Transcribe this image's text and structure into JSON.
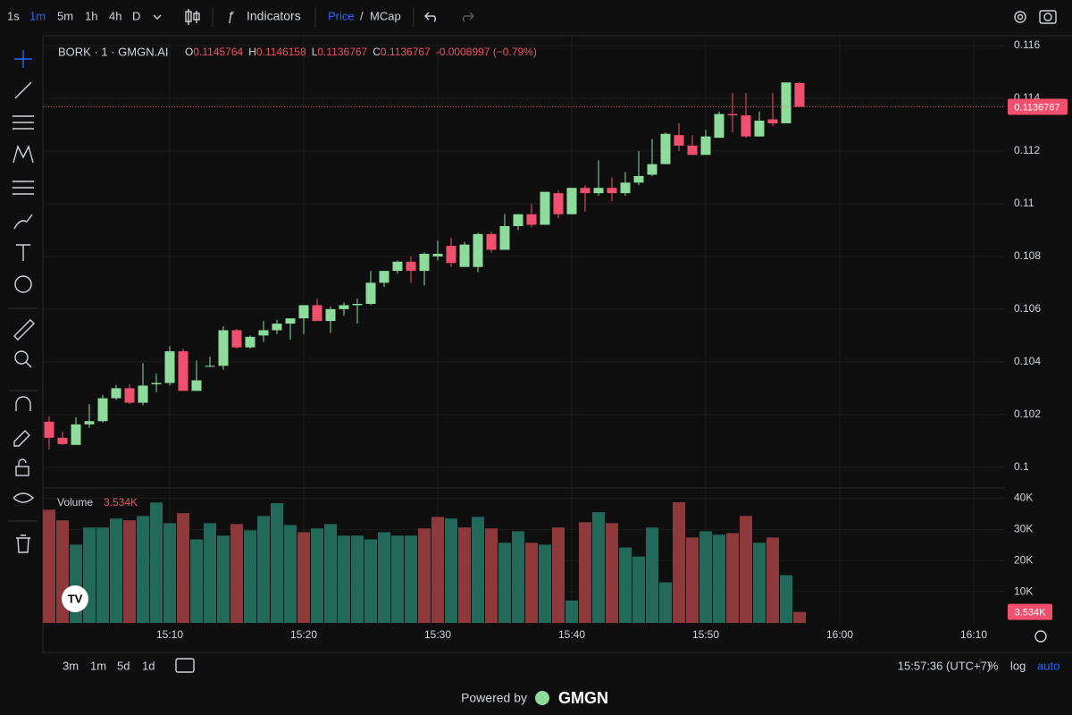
{
  "toolbar": {
    "intervals": [
      "1s",
      "1m",
      "5m",
      "1h",
      "4h",
      "D"
    ],
    "active": "1m",
    "indicators": "Indicators",
    "price": "Price",
    "slash": "/",
    "mcap": "MCap"
  },
  "chart_data": {
    "type": "candlestick",
    "symbol": "BORK · 1 · GMGN.AI",
    "legend": [
      {
        "key": "O",
        "value": "0.1145764"
      },
      {
        "key": "H",
        "value": "0.1146158"
      },
      {
        "key": "L",
        "value": "0.1136767"
      },
      {
        "key": "C",
        "value": "0.1136767"
      }
    ],
    "change": "-0.0008997 (−0.79%)",
    "x": [
      "15:01",
      "15:02",
      "15:03",
      "15:04",
      "15:05",
      "15:06",
      "15:07",
      "15:08",
      "15:09",
      "15:10",
      "15:11",
      "15:12",
      "15:13",
      "15:14",
      "15:15",
      "15:16",
      "15:17",
      "15:18",
      "15:19",
      "15:20",
      "15:21",
      "15:22",
      "15:23",
      "15:24",
      "15:25",
      "15:26",
      "15:27",
      "15:28",
      "15:29",
      "15:30",
      "15:31",
      "15:32",
      "15:33",
      "15:34",
      "15:35",
      "15:36",
      "15:37",
      "15:38",
      "15:39",
      "15:40",
      "15:41",
      "15:42",
      "15:43",
      "15:44",
      "15:45",
      "15:46",
      "15:47",
      "15:48",
      "15:49",
      "15:50",
      "15:51",
      "15:52",
      "15:53",
      "15:54",
      "15:55",
      "15:56",
      "15:57"
    ],
    "open": [
      0.10173,
      0.10112,
      0.10085,
      0.10163,
      0.10175,
      0.10262,
      0.103,
      0.10245,
      0.10315,
      0.1032,
      0.1044,
      0.1029,
      0.10385,
      0.10385,
      0.1052,
      0.10455,
      0.105,
      0.1052,
      0.10545,
      0.10565,
      0.10615,
      0.10555,
      0.106,
      0.10615,
      0.1062,
      0.107,
      0.10745,
      0.1078,
      0.10745,
      0.108,
      0.1084,
      0.1076,
      0.1076,
      0.10885,
      0.10825,
      0.10915,
      0.1096,
      0.1092,
      0.1104,
      0.1096,
      0.1106,
      0.1104,
      0.1106,
      0.1104,
      0.1108,
      0.1111,
      0.1115,
      0.1126,
      0.1122,
      0.11185,
      0.1125,
      0.1134,
      0.11335,
      0.11255,
      0.1132,
      0.11305,
      0.1145764
    ],
    "high": [
      0.10193,
      0.10135,
      0.1019,
      0.1024,
      0.10275,
      0.10312,
      0.10315,
      0.10395,
      0.10355,
      0.1046,
      0.1045,
      0.10405,
      0.1042,
      0.10535,
      0.10525,
      0.105,
      0.10555,
      0.1056,
      0.10565,
      0.1061,
      0.1064,
      0.1061,
      0.10625,
      0.1064,
      0.10745,
      0.1074,
      0.10785,
      0.108,
      0.10815,
      0.1086,
      0.1087,
      0.10855,
      0.1089,
      0.10895,
      0.1096,
      0.1096,
      0.11,
      0.11045,
      0.1105,
      0.1106,
      0.1107,
      0.11165,
      0.111,
      0.1112,
      0.112,
      0.11245,
      0.1127,
      0.11305,
      0.1126,
      0.1128,
      0.1135,
      0.1142,
      0.1142,
      0.1135,
      0.1142,
      0.1146,
      0.1146158
    ],
    "low": [
      0.10068,
      0.10085,
      0.10085,
      0.1015,
      0.1017,
      0.10255,
      0.1024,
      0.10235,
      0.10285,
      0.1031,
      0.1029,
      0.1029,
      0.1038,
      0.1037,
      0.1045,
      0.1045,
      0.10475,
      0.10505,
      0.10485,
      0.10505,
      0.10555,
      0.1051,
      0.10575,
      0.10545,
      0.10615,
      0.10685,
      0.10735,
      0.107,
      0.1069,
      0.10785,
      0.1076,
      0.1076,
      0.1074,
      0.10815,
      0.10825,
      0.109,
      0.1091,
      0.1092,
      0.10945,
      0.1096,
      0.1097,
      0.1103,
      0.1101,
      0.1103,
      0.1107,
      0.11105,
      0.1115,
      0.112,
      0.11185,
      0.11185,
      0.1125,
      0.1127,
      0.1125,
      0.11255,
      0.11295,
      0.11305,
      0.1136767
    ],
    "close": [
      0.10112,
      0.10088,
      0.10163,
      0.10175,
      0.10262,
      0.103,
      0.10245,
      0.1031,
      0.1032,
      0.1044,
      0.1029,
      0.1033,
      0.10385,
      0.1052,
      0.10455,
      0.10495,
      0.1052,
      0.10545,
      0.10565,
      0.10615,
      0.10555,
      0.106,
      0.10615,
      0.1062,
      0.107,
      0.10745,
      0.1078,
      0.10745,
      0.1081,
      0.1081,
      0.10775,
      0.10845,
      0.10885,
      0.10825,
      0.10915,
      0.1096,
      0.1092,
      0.11045,
      0.1096,
      0.1106,
      0.1104,
      0.1106,
      0.1104,
      0.1108,
      0.11105,
      0.1115,
      0.11265,
      0.1122,
      0.11185,
      0.11255,
      0.1134,
      0.11335,
      0.11255,
      0.11315,
      0.11305,
      0.1146,
      0.1136767
    ],
    "up_color": "#8ddc9c",
    "down_color": "#f0506e",
    "xlim": [
      "15:00",
      "16:15"
    ],
    "xticks": [
      "15:10",
      "15:20",
      "15:30",
      "15:40",
      "15:50",
      "16:00",
      "16:10"
    ],
    "ylim": [
      0.09925,
      0.11637
    ],
    "yticks": [
      0.1,
      0.102,
      0.104,
      0.106,
      0.108,
      0.11,
      0.112,
      0.114,
      0.116
    ],
    "last_price_label": "0.1136767",
    "grid": true,
    "volume": {
      "name": "Volume",
      "last_label": "3.534K",
      "values": [
        36300,
        32900,
        25100,
        30600,
        30600,
        33500,
        32900,
        34300,
        38600,
        32000,
        35200,
        26800,
        32000,
        28000,
        31700,
        29700,
        34300,
        38400,
        31400,
        29100,
        30300,
        31700,
        28000,
        28000,
        26800,
        29100,
        28000,
        28000,
        30300,
        34000,
        33500,
        30600,
        34000,
        30300,
        25700,
        29400,
        25700,
        25100,
        30600,
        7200,
        32300,
        35500,
        32000,
        24200,
        21300,
        30600,
        13000,
        38700,
        27400,
        29400,
        28300,
        28800,
        34300,
        25700,
        27400,
        15300,
        3534
      ],
      "colors": [
        "#8e3a3d",
        "#8e3a3d",
        "#22695a",
        "#22695a",
        "#22695a",
        "#22695a",
        "#8e3a3d",
        "#22695a",
        "#22695a",
        "#22695a",
        "#8e3a3d",
        "#22695a",
        "#22695a",
        "#22695a",
        "#8e3a3d",
        "#22695a",
        "#22695a",
        "#22695a",
        "#22695a",
        "#8e3a3d",
        "#22695a",
        "#22695a",
        "#22695a",
        "#22695a",
        "#22695a",
        "#22695a",
        "#22695a",
        "#22695a",
        "#8e3a3d",
        "#8e3a3d",
        "#22695a",
        "#8e3a3d",
        "#22695a",
        "#8e3a3d",
        "#22695a",
        "#22695a",
        "#8e3a3d",
        "#22695a",
        "#8e3a3d",
        "#22695a",
        "#8e3a3d",
        "#22695a",
        "#8e3a3d",
        "#22695a",
        "#22695a",
        "#22695a",
        "#22695a",
        "#8e3a3d",
        "#8e3a3d",
        "#22695a",
        "#22695a",
        "#8e3a3d",
        "#8e3a3d",
        "#22695a",
        "#8e3a3d",
        "#22695a",
        "#8e3a3d"
      ],
      "ylim": [
        0,
        42700
      ],
      "yticks": [
        {
          "value": 10000,
          "label": "10K"
        },
        {
          "value": 20000,
          "label": "20K"
        },
        {
          "value": 30000,
          "label": "30K"
        },
        {
          "value": 40000,
          "label": "40K"
        }
      ]
    }
  },
  "bottom_bar": {
    "ranges": [
      "3m",
      "1m",
      "5d",
      "1d"
    ],
    "clock": "15:57:36 (UTC+7)",
    "options": [
      "%",
      "log",
      "auto"
    ]
  },
  "footer": {
    "powered": "Powered by",
    "brand": "GMGN"
  }
}
